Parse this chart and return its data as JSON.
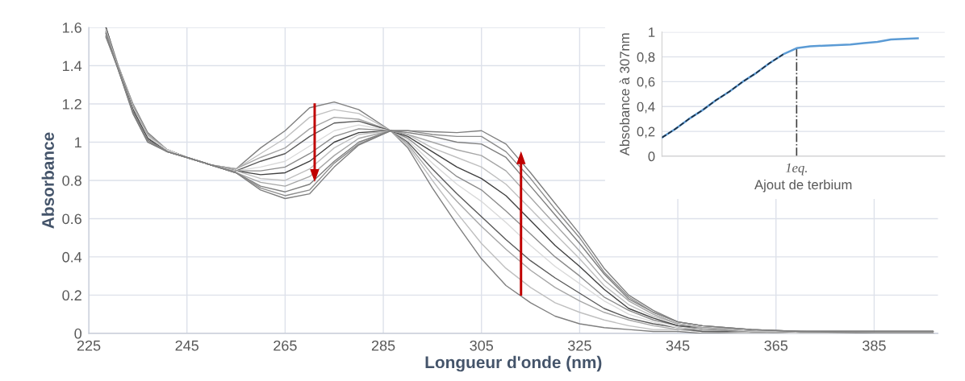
{
  "chart_data": [
    {
      "type": "line",
      "xlabel": "Longueur d'onde (nm)",
      "ylabel": "Absorbance",
      "xlim": [
        225,
        398
      ],
      "xticks": [
        225,
        245,
        265,
        285,
        305,
        325,
        345,
        365,
        385
      ],
      "ylim": [
        0,
        1.6
      ],
      "yticks": [
        0,
        0.2,
        0.4,
        0.6,
        0.8,
        1,
        1.2,
        1.4,
        1.6
      ],
      "grid": true,
      "x": [
        228.5,
        231,
        234,
        237,
        241,
        245,
        250,
        255,
        260,
        265,
        270,
        275,
        280,
        286.5,
        290,
        295,
        300,
        305,
        310,
        315,
        320,
        325,
        330,
        335,
        340,
        345,
        350,
        360,
        370,
        385,
        397
      ],
      "series": [
        {
          "color": "#7f7f7f",
          "values": [
            1.6,
            1.4,
            1.2,
            1.05,
            0.96,
            0.92,
            0.88,
            0.86,
            0.97,
            1.06,
            1.18,
            1.21,
            1.17,
            1.06,
            0.97,
            0.76,
            0.57,
            0.39,
            0.25,
            0.16,
            0.09,
            0.05,
            0.03,
            0.02,
            0.01,
            0.01,
            0,
            0,
            0,
            0,
            0
          ]
        },
        {
          "color": "#bfbfbf",
          "values": [
            1.59,
            1.4,
            1.19,
            1.04,
            0.96,
            0.92,
            0.88,
            0.86,
            0.94,
            1.02,
            1.13,
            1.17,
            1.15,
            1.06,
            0.98,
            0.8,
            0.63,
            0.47,
            0.34,
            0.24,
            0.16,
            0.11,
            0.07,
            0.04,
            0.02,
            0.02,
            0.01,
            0,
            0,
            0,
            0
          ]
        },
        {
          "color": "#a6a6a6",
          "values": [
            1.58,
            1.4,
            1.19,
            1.04,
            0.96,
            0.92,
            0.88,
            0.86,
            0.92,
            0.97,
            1.07,
            1.13,
            1.12,
            1.06,
            0.99,
            0.83,
            0.69,
            0.56,
            0.44,
            0.33,
            0.24,
            0.17,
            0.11,
            0.07,
            0.04,
            0.02,
            0.01,
            0.01,
            0,
            0,
            0
          ]
        },
        {
          "color": "#595959",
          "values": [
            1.57,
            1.39,
            1.18,
            1.03,
            0.96,
            0.92,
            0.88,
            0.85,
            0.9,
            0.94,
            1.03,
            1.1,
            1.11,
            1.06,
            1.0,
            0.86,
            0.73,
            0.61,
            0.49,
            0.38,
            0.29,
            0.21,
            0.13,
            0.08,
            0.05,
            0.03,
            0.01,
            0.01,
            0,
            0,
            0
          ]
        },
        {
          "color": "#d9d9d9",
          "values": [
            1.56,
            1.39,
            1.18,
            1.03,
            0.96,
            0.92,
            0.88,
            0.85,
            0.87,
            0.9,
            0.98,
            1.06,
            1.09,
            1.06,
            1.01,
            0.89,
            0.78,
            0.69,
            0.58,
            0.46,
            0.35,
            0.26,
            0.17,
            0.1,
            0.06,
            0.03,
            0.02,
            0.01,
            0,
            0,
            0
          ]
        },
        {
          "color": "#8c8c8c",
          "values": [
            1.55,
            1.39,
            1.17,
            1.02,
            0.95,
            0.92,
            0.88,
            0.85,
            0.85,
            0.87,
            0.94,
            1.03,
            1.07,
            1.06,
            1.02,
            0.92,
            0.82,
            0.75,
            0.64,
            0.52,
            0.4,
            0.3,
            0.19,
            0.12,
            0.07,
            0.04,
            0.02,
            0.01,
            0.01,
            0,
            0
          ]
        },
        {
          "color": "#404040",
          "values": [
            1.6,
            1.39,
            1.17,
            1.02,
            0.95,
            0.92,
            0.88,
            0.85,
            0.83,
            0.84,
            0.9,
            1.0,
            1.05,
            1.06,
            1.03,
            0.95,
            0.87,
            0.81,
            0.72,
            0.59,
            0.46,
            0.35,
            0.23,
            0.13,
            0.08,
            0.04,
            0.03,
            0.01,
            0.01,
            0.01,
            0.01
          ]
        },
        {
          "color": "#bfbfbf",
          "values": [
            1.59,
            1.39,
            1.16,
            1.01,
            0.95,
            0.92,
            0.88,
            0.85,
            0.81,
            0.8,
            0.86,
            0.97,
            1.04,
            1.06,
            1.04,
            0.97,
            0.92,
            0.87,
            0.78,
            0.65,
            0.52,
            0.39,
            0.25,
            0.15,
            0.09,
            0.05,
            0.03,
            0.01,
            0.01,
            0.01,
            0.01
          ]
        },
        {
          "color": "#a6a6a6",
          "values": [
            1.58,
            1.38,
            1.16,
            1.01,
            0.95,
            0.92,
            0.88,
            0.84,
            0.79,
            0.77,
            0.82,
            0.93,
            1.02,
            1.06,
            1.04,
            1.0,
            0.96,
            0.93,
            0.85,
            0.71,
            0.57,
            0.43,
            0.28,
            0.17,
            0.1,
            0.05,
            0.03,
            0.02,
            0.01,
            0.01,
            0.01
          ]
        },
        {
          "color": "#7f7f7f",
          "values": [
            1.57,
            1.38,
            1.16,
            1.01,
            0.95,
            0.92,
            0.88,
            0.84,
            0.77,
            0.74,
            0.78,
            0.9,
            1.0,
            1.06,
            1.05,
            1.03,
            1.0,
            0.99,
            0.92,
            0.77,
            0.62,
            0.47,
            0.31,
            0.18,
            0.11,
            0.06,
            0.04,
            0.02,
            0.01,
            0.01,
            0.01
          ]
        },
        {
          "color": "#8c8c8c",
          "values": [
            1.56,
            1.38,
            1.15,
            1.0,
            0.95,
            0.92,
            0.88,
            0.84,
            0.76,
            0.72,
            0.75,
            0.89,
            0.99,
            1.06,
            1.06,
            1.04,
            1.03,
            1.03,
            0.95,
            0.81,
            0.65,
            0.5,
            0.32,
            0.19,
            0.11,
            0.06,
            0.04,
            0.02,
            0.01,
            0.01,
            0.01
          ]
        },
        {
          "color": "#7f7f7f",
          "values": [
            1.55,
            1.38,
            1.15,
            1.0,
            0.95,
            0.92,
            0.88,
            0.84,
            0.75,
            0.705,
            0.73,
            0.87,
            0.985,
            1.06,
            1.06,
            1.055,
            1.05,
            1.06,
            0.99,
            0.84,
            0.68,
            0.52,
            0.34,
            0.2,
            0.12,
            0.06,
            0.04,
            0.02,
            0.01,
            0.01,
            0.01
          ]
        }
      ]
    },
    {
      "type": "line",
      "xlabel": "Ajout de terbium",
      "ylabel": "Absobance à 307nm",
      "ylim": [
        0,
        1
      ],
      "yticks": [
        0,
        {
          "value": 0.2,
          "label": "0,2"
        },
        {
          "value": 0.4,
          "label": "0,4"
        },
        {
          "value": 0.6,
          "label": "0,6"
        },
        {
          "value": 0.8,
          "label": "0,8"
        },
        1
      ],
      "grid": "y",
      "categories": [
        null,
        null,
        null,
        null,
        null,
        null,
        null,
        null,
        null,
        null,
        "1eq.",
        null,
        null,
        null,
        null,
        null,
        null,
        null,
        null,
        null
      ],
      "ref_lines": [
        {
          "axis": "x",
          "value": "1eq.",
          "color": "#404040",
          "line_style": "dashdot"
        }
      ],
      "series": [
        {
          "color": "#5b9bd5",
          "values": [
            0.15,
            0.22,
            0.3,
            0.37,
            0.45,
            0.52,
            0.6,
            0.67,
            0.75,
            0.82,
            0.87,
            0.885,
            0.89,
            0.895,
            0.9,
            0.91,
            0.92,
            0.94,
            0.945,
            0.95
          ]
        },
        {
          "type": "line",
          "color": "#1f2d3d",
          "line_style": "dashed",
          "values": [
            0.15,
            0.22,
            0.3,
            0.37,
            0.45,
            0.52,
            0.6,
            0.67,
            0.75,
            0.82,
            null,
            null,
            null,
            null,
            null,
            null,
            null,
            null,
            null,
            null
          ]
        }
      ]
    }
  ]
}
